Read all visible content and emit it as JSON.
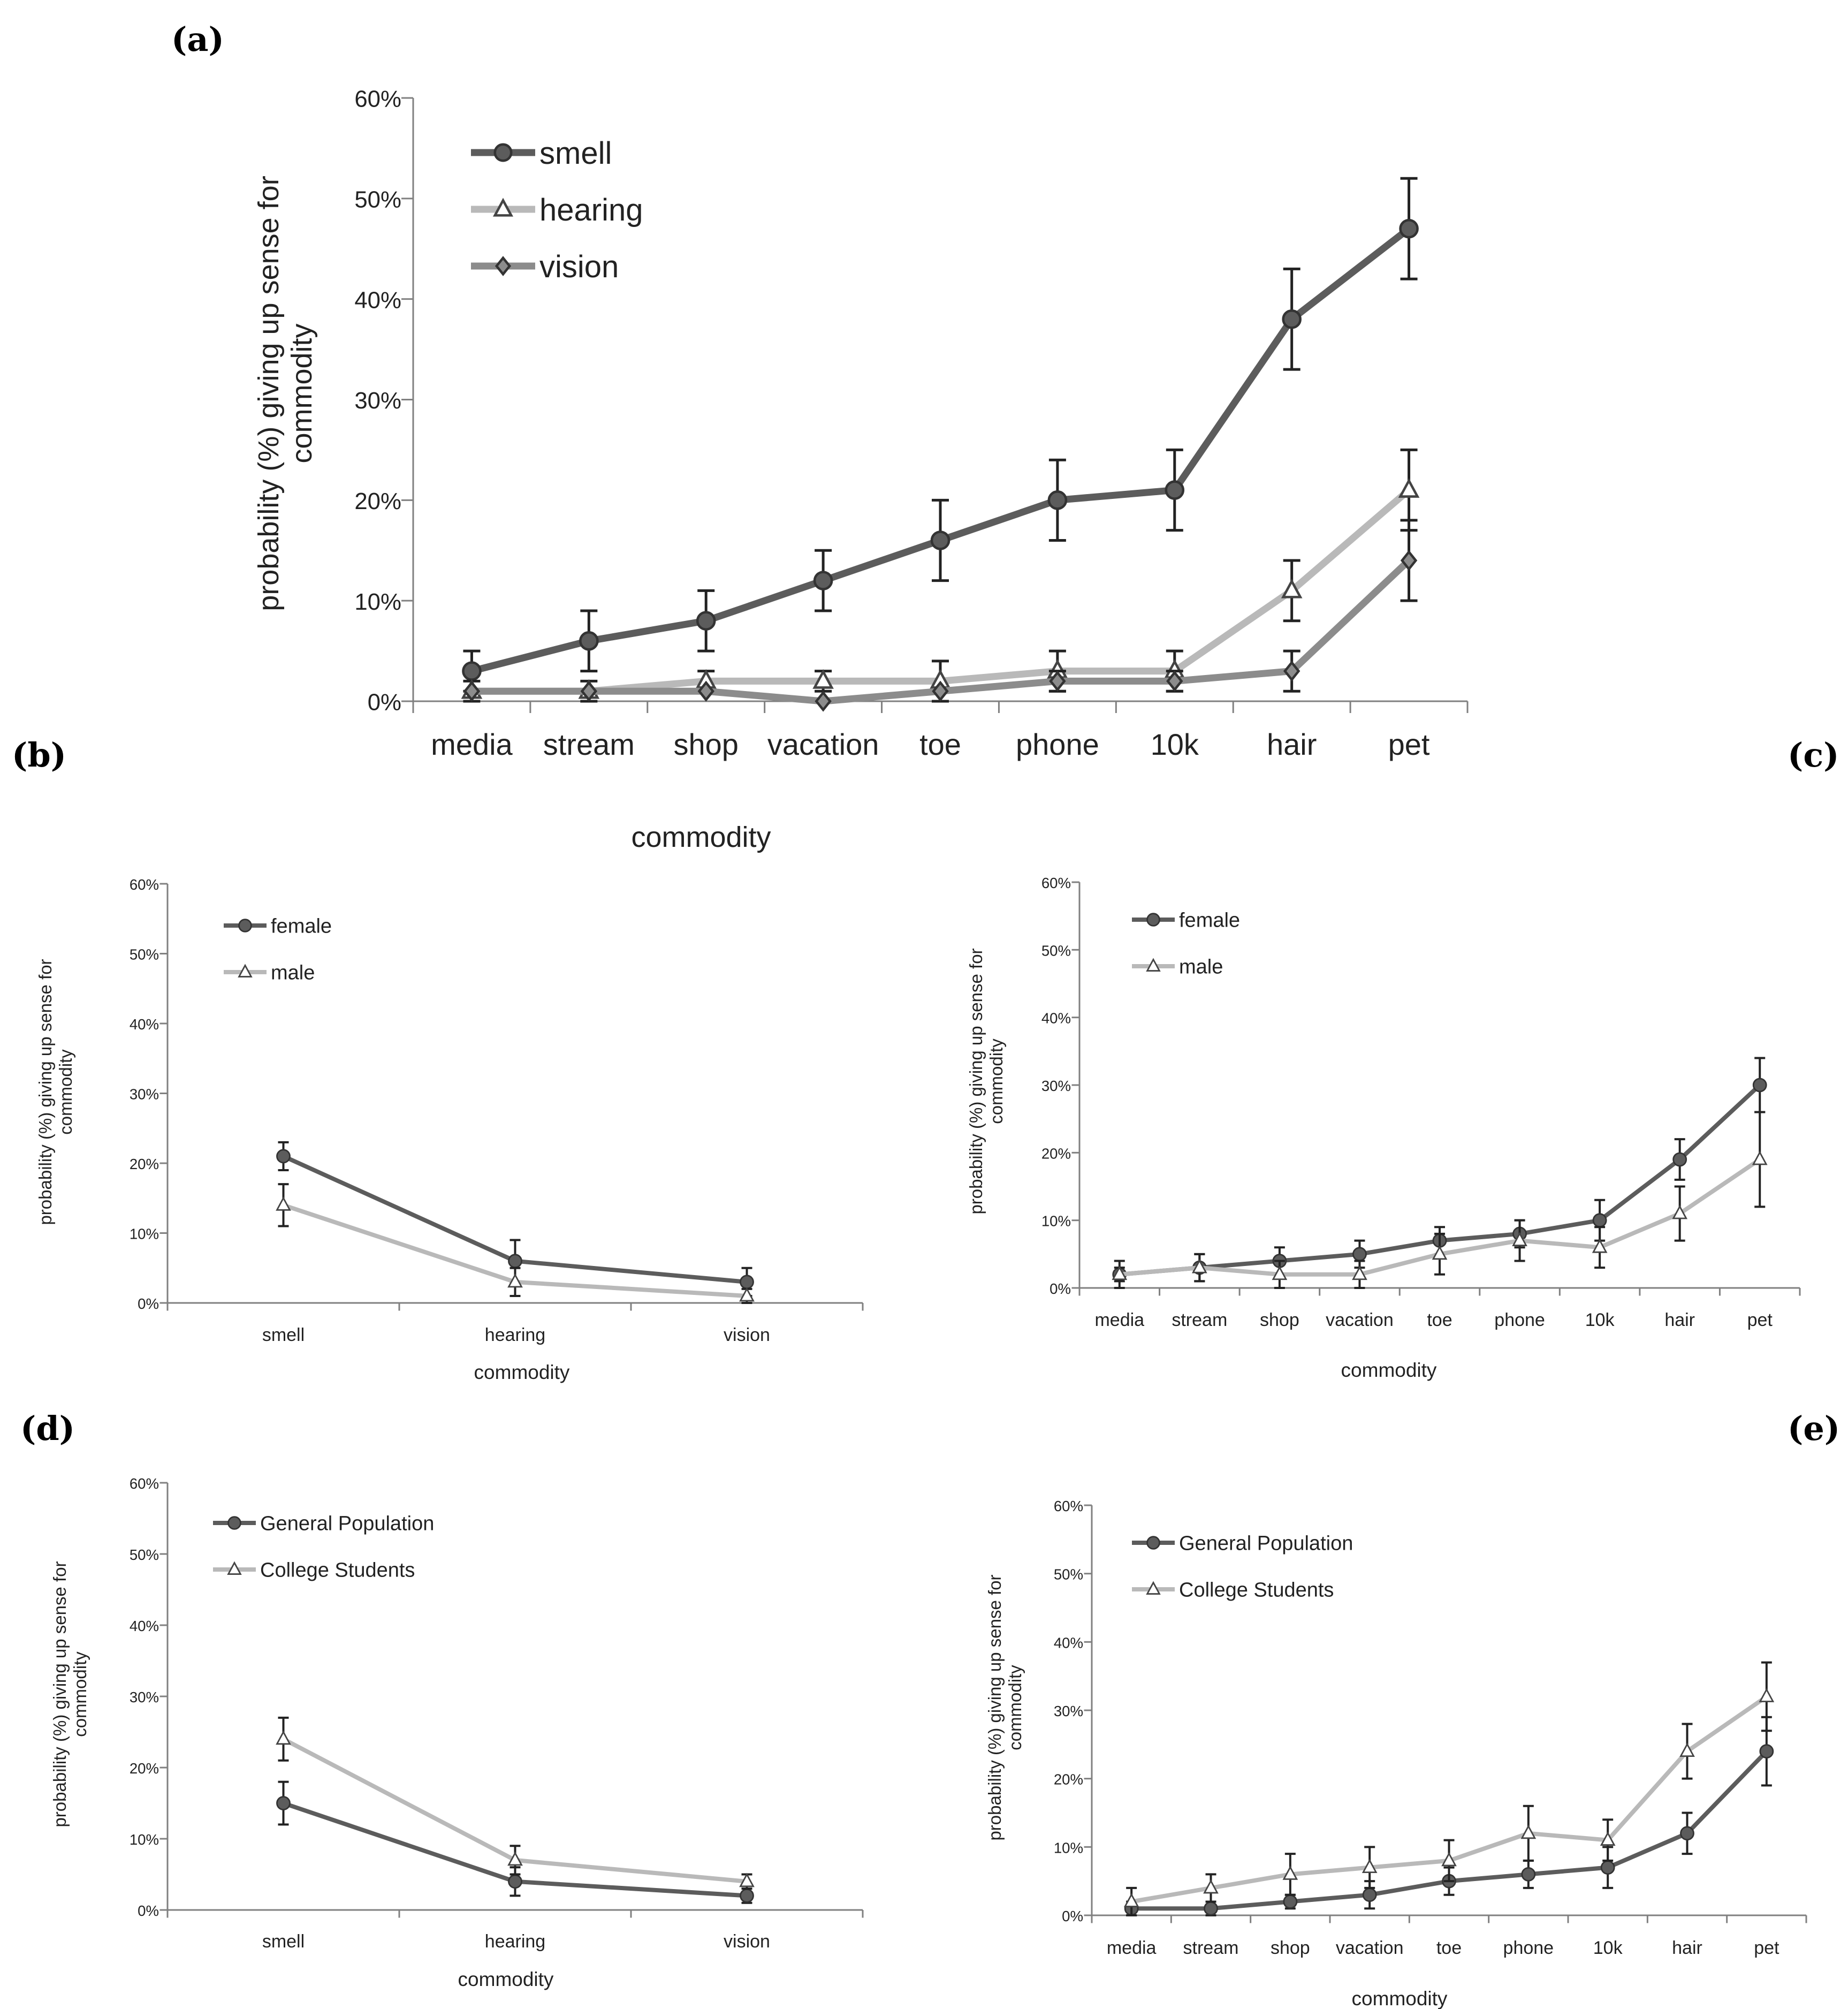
{
  "panel_labels": {
    "a": "(a)",
    "b": "(b)",
    "c": "(c)",
    "d": "(d)",
    "e": "(e)"
  },
  "colors": {
    "dark": "#5c5c5c",
    "mid": "#8c8c8c",
    "light": "#b9b9b9",
    "axis": "#808080",
    "text": "#222222"
  },
  "chart_data": [
    {
      "id": "a",
      "type": "line",
      "categories": [
        "media",
        "stream",
        "shop",
        "vacation",
        "toe",
        "phone",
        "10k",
        "hair",
        "pet"
      ],
      "ylim": [
        0,
        60
      ],
      "yticks": [
        "0%",
        "10%",
        "20%",
        "30%",
        "40%",
        "50%",
        "60%"
      ],
      "ylabel_lines": [
        "probability (%) giving up sense for",
        "commodity"
      ],
      "xlabel": "commodity",
      "series": [
        {
          "name": "smell",
          "marker": "circle",
          "color": "#5c5c5c",
          "values": [
            3,
            6,
            8,
            12,
            16,
            20,
            21,
            38,
            47
          ],
          "errors": [
            2,
            3,
            3,
            3,
            4,
            4,
            4,
            5,
            5
          ]
        },
        {
          "name": "hearing",
          "marker": "triangle",
          "color": "#b9b9b9",
          "values": [
            1,
            1,
            2,
            2,
            2,
            3,
            3,
            11,
            21
          ],
          "errors": [
            1,
            1,
            1,
            1,
            2,
            2,
            2,
            3,
            4
          ]
        },
        {
          "name": "vision",
          "marker": "diamond",
          "color": "#8c8c8c",
          "values": [
            1,
            1,
            1,
            0,
            1,
            2,
            2,
            3,
            14
          ],
          "errors": [
            0,
            0,
            0,
            0,
            0,
            1,
            1,
            2,
            4
          ]
        }
      ]
    },
    {
      "id": "b",
      "type": "line",
      "categories": [
        "smell",
        "hearing",
        "vision"
      ],
      "ylim": [
        0,
        60
      ],
      "yticks": [
        "0%",
        "10%",
        "20%",
        "30%",
        "40%",
        "50%",
        "60%"
      ],
      "ylabel_lines": [
        "probability (%) giving up sense for",
        "commodity"
      ],
      "xlabel": "commodity",
      "series": [
        {
          "name": "female",
          "marker": "circle",
          "color": "#5c5c5c",
          "values": [
            21,
            6,
            3
          ],
          "errors": [
            2,
            3,
            2
          ]
        },
        {
          "name": "male",
          "marker": "triangle",
          "color": "#b9b9b9",
          "values": [
            14,
            3,
            1
          ],
          "errors": [
            3,
            2,
            1
          ]
        }
      ]
    },
    {
      "id": "c",
      "type": "line",
      "categories": [
        "media",
        "stream",
        "shop",
        "vacation",
        "toe",
        "phone",
        "10k",
        "hair",
        "pet"
      ],
      "ylim": [
        0,
        60
      ],
      "yticks": [
        "0%",
        "10%",
        "20%",
        "30%",
        "40%",
        "50%",
        "60%"
      ],
      "ylabel_lines": [
        "probability (%) giving up sense for",
        "commodity"
      ],
      "xlabel": "commodity",
      "series": [
        {
          "name": "female",
          "marker": "circle",
          "color": "#5c5c5c",
          "values": [
            2,
            3,
            4,
            5,
            7,
            8,
            10,
            19,
            30
          ],
          "errors": [
            2,
            2,
            2,
            2,
            2,
            2,
            3,
            3,
            4
          ]
        },
        {
          "name": "male",
          "marker": "triangle",
          "color": "#b9b9b9",
          "values": [
            2,
            3,
            2,
            2,
            5,
            7,
            6,
            11,
            19
          ],
          "errors": [
            1,
            2,
            2,
            2,
            3,
            3,
            3,
            4,
            7
          ]
        }
      ]
    },
    {
      "id": "d",
      "type": "line",
      "categories": [
        "smell",
        "hearing",
        "vision"
      ],
      "ylim": [
        0,
        60
      ],
      "yticks": [
        "0%",
        "10%",
        "20%",
        "30%",
        "40%",
        "50%",
        "60%"
      ],
      "ylabel_lines": [
        "probability (%) giving up sense for",
        "commodity"
      ],
      "xlabel": "commodity",
      "series": [
        {
          "name": "General Population",
          "marker": "circle",
          "color": "#5c5c5c",
          "values": [
            15,
            4,
            2
          ],
          "errors": [
            3,
            2,
            1
          ]
        },
        {
          "name": "College Students",
          "marker": "triangle",
          "color": "#b9b9b9",
          "values": [
            24,
            7,
            4
          ],
          "errors": [
            3,
            2,
            1
          ]
        }
      ]
    },
    {
      "id": "e",
      "type": "line",
      "categories": [
        "media",
        "stream",
        "shop",
        "vacation",
        "toe",
        "phone",
        "10k",
        "hair",
        "pet"
      ],
      "ylim": [
        0,
        60
      ],
      "yticks": [
        "0%",
        "10%",
        "20%",
        "30%",
        "40%",
        "50%",
        "60%"
      ],
      "ylabel_lines": [
        "probability (%) giving up sense for",
        "commodity"
      ],
      "xlabel": "commodity",
      "series": [
        {
          "name": "General Population",
          "marker": "circle",
          "color": "#5c5c5c",
          "values": [
            1,
            1,
            2,
            3,
            5,
            6,
            7,
            12,
            24
          ],
          "errors": [
            1,
            1,
            1,
            2,
            2,
            2,
            3,
            3,
            5
          ]
        },
        {
          "name": "College Students",
          "marker": "triangle",
          "color": "#b9b9b9",
          "values": [
            2,
            4,
            6,
            7,
            8,
            12,
            11,
            24,
            32
          ],
          "errors": [
            2,
            2,
            3,
            3,
            3,
            4,
            3,
            4,
            5
          ]
        }
      ]
    }
  ]
}
